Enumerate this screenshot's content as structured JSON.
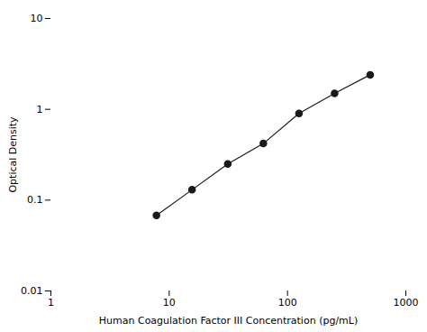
{
  "chart_data": {
    "type": "line",
    "x": [
      7.8,
      15.6,
      31.25,
      62.5,
      125,
      250,
      500
    ],
    "values": [
      0.068,
      0.13,
      0.25,
      0.42,
      0.9,
      1.5,
      2.4
    ],
    "xlabel": "Human Coagulation Factor III Concentration (pg/mL)",
    "ylabel": "Optical Density",
    "xlim": [
      1,
      1000
    ],
    "ylim": [
      0.01,
      10
    ],
    "xticks": [
      1,
      10,
      100,
      1000
    ],
    "yticks": [
      0.01,
      0.1,
      1,
      10
    ],
    "log": true,
    "grid": false,
    "color": "#1a1a1a",
    "marker": "o"
  }
}
